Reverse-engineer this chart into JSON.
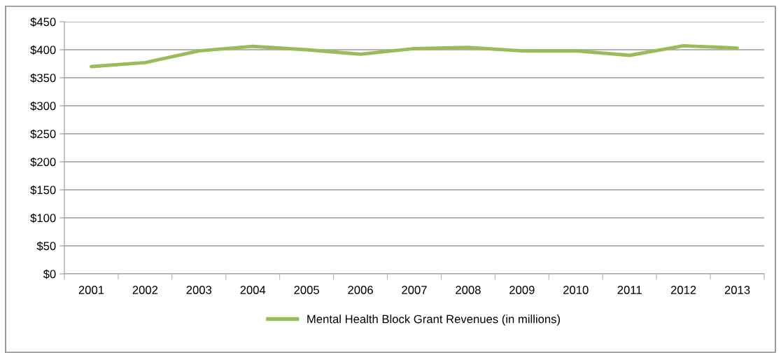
{
  "chart_data": {
    "type": "line",
    "categories": [
      "2001",
      "2002",
      "2003",
      "2004",
      "2005",
      "2006",
      "2007",
      "2008",
      "2009",
      "2010",
      "2011",
      "2012",
      "2013"
    ],
    "series": [
      {
        "name": "Mental Health Block Grant Revenues (in millions)",
        "color": "#9bbb59",
        "values": [
          370,
          377,
          398,
          406,
          400,
          392,
          402,
          404,
          398,
          398,
          390,
          407,
          403
        ]
      }
    ],
    "ylim": [
      0,
      450
    ],
    "yticks": [
      {
        "value": 0,
        "label": "$0"
      },
      {
        "value": 50,
        "label": "$50"
      },
      {
        "value": 100,
        "label": "$100"
      },
      {
        "value": 150,
        "label": "$150"
      },
      {
        "value": 200,
        "label": "$200"
      },
      {
        "value": 250,
        "label": "$250"
      },
      {
        "value": 300,
        "label": "$300"
      },
      {
        "value": 350,
        "label": "$350"
      },
      {
        "value": 400,
        "label": "$400"
      },
      {
        "value": 450,
        "label": "$450"
      }
    ],
    "grid": "y",
    "legend": "bottom",
    "marker": "none",
    "line_style": "solid"
  }
}
